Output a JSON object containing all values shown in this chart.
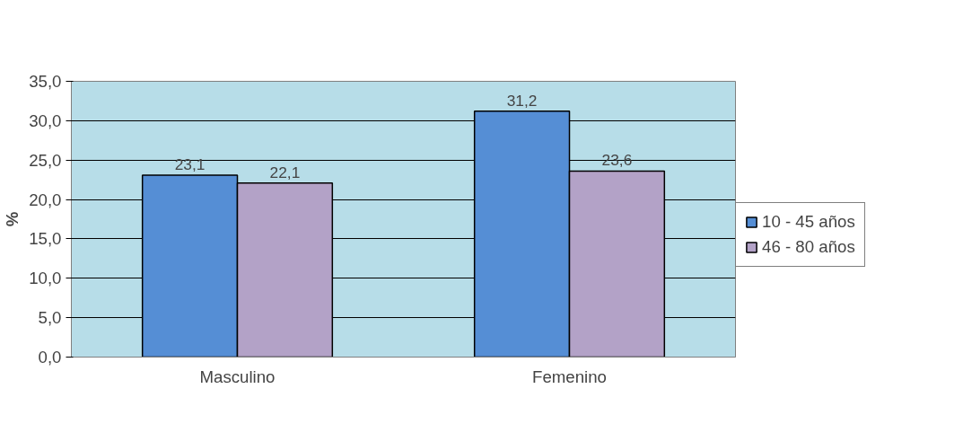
{
  "chart_data": {
    "type": "bar",
    "ylabel": "%",
    "categories": [
      "Masculino",
      "Femenino"
    ],
    "series": [
      {
        "name": "10 - 45 años",
        "color": "#558ed5",
        "values": [
          23.1,
          31.2
        ],
        "value_labels": [
          "23,1",
          "31,2"
        ]
      },
      {
        "name": "46 - 80 años",
        "color": "#b3a2c7",
        "values": [
          22.1,
          23.6
        ],
        "value_labels": [
          "22,1",
          "23,6"
        ]
      }
    ],
    "ylim": [
      0,
      35
    ],
    "yticks": [
      {
        "value": 0,
        "label": "0,0"
      },
      {
        "value": 5,
        "label": "5,0"
      },
      {
        "value": 10,
        "label": "10,0"
      },
      {
        "value": 15,
        "label": "15,0"
      },
      {
        "value": 20,
        "label": "20,0"
      },
      {
        "value": 25,
        "label": "25,0"
      },
      {
        "value": 30,
        "label": "30,0"
      },
      {
        "value": 35,
        "label": "35,0"
      }
    ],
    "grid": "y",
    "legend": "right"
  }
}
